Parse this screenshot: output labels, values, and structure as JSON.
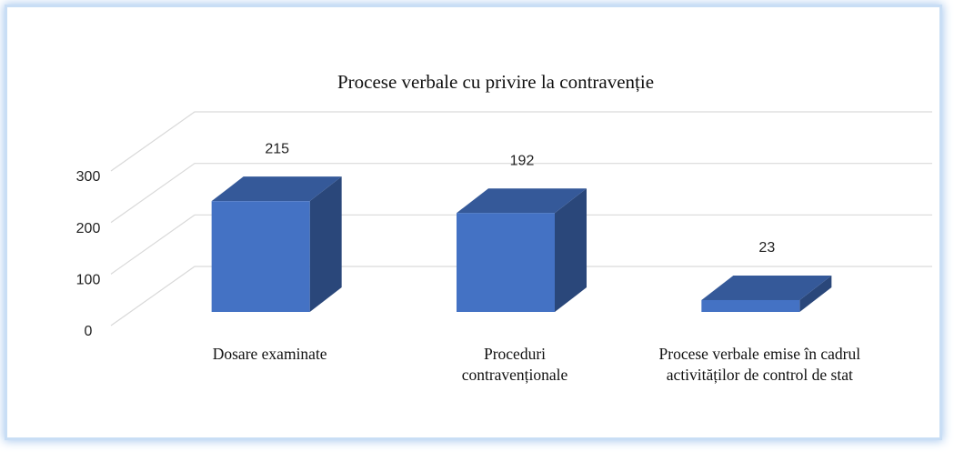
{
  "chart_data": {
    "type": "bar3d",
    "title": "Procese verbale cu privire la contravenție",
    "categories": [
      "Dosare examinate",
      "Proceduri contravenționale",
      "Procese verbale emise în cadrul activităților de control de stat"
    ],
    "values": [
      215,
      192,
      23
    ],
    "color": "#4472c4",
    "ylim": [
      0,
      300
    ],
    "yticks": [
      0,
      100,
      200,
      300
    ],
    "grid": true
  }
}
